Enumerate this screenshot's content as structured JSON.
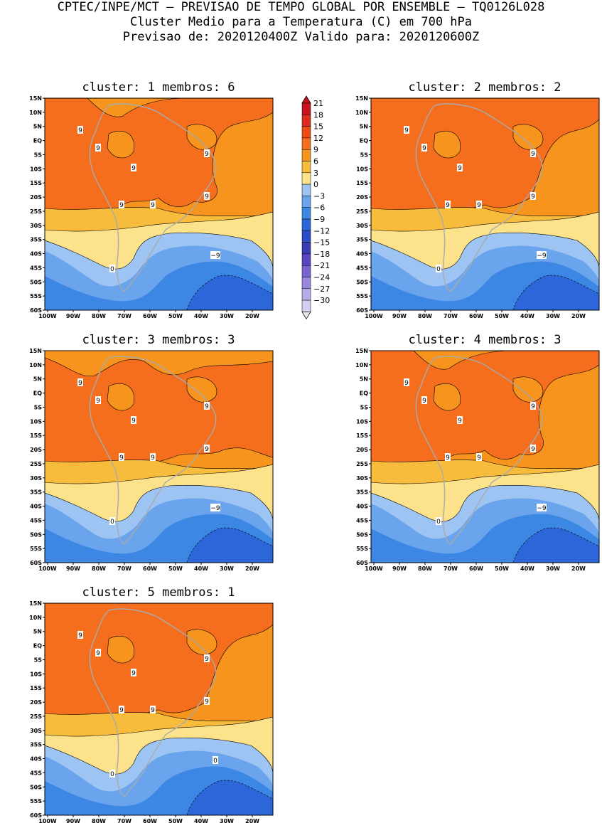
{
  "header": {
    "line1": "CPTEC/INPE/MCT – PREVISAO DE TEMPO GLOBAL POR ENSEMBLE – TQ0126L028",
    "line2": "Cluster Medio para a Temperatura (C) em 700 hPa",
    "line3": "Previsao de: 2020120400Z   Valido para: 2020120600Z"
  },
  "axes": {
    "lat_labels": [
      "15N",
      "10N",
      "5N",
      "EQ",
      "5S",
      "10S",
      "15S",
      "20S",
      "25S",
      "30S",
      "35S",
      "40S",
      "45S",
      "50S",
      "55S",
      "60S"
    ],
    "lon_labels": [
      "100W",
      "90W",
      "80W",
      "70W",
      "60W",
      "50W",
      "40W",
      "30W",
      "20W"
    ]
  },
  "colorbar": {
    "levels": [
      "21",
      "18",
      "15",
      "12",
      "9",
      "6",
      "3",
      "0",
      "−3",
      "−6",
      "−9",
      "−12",
      "−15",
      "−18",
      "−21",
      "−24",
      "−27",
      "−30"
    ],
    "colors": [
      "#c8141e",
      "#dc2a1e",
      "#ee4a14",
      "#f46e1e",
      "#f6941e",
      "#f8bc3c",
      "#fce28a",
      "#9ec4f4",
      "#6aa4ec",
      "#3c86e4",
      "#2c66d8",
      "#2a4ec8",
      "#3c3cb4",
      "#5a46c2",
      "#7a62d2",
      "#9a86de",
      "#b8aae8",
      "#d6ccf2"
    ]
  },
  "palette": {
    "warm12": "#f46e1e",
    "warm9": "#f6941e",
    "warm6": "#f8bc3c",
    "warm3": "#fce28a",
    "cold0": "#9ec4f4",
    "coldm3": "#6aa4ec",
    "coldm6": "#3c86e4",
    "coldm9": "#2c66d8",
    "land": "#aaaaaa"
  },
  "panels": [
    {
      "title": "cluster: 1   membros: 6",
      "labels": [
        "9",
        "9",
        "9",
        "9",
        "9",
        "9",
        "9",
        "0",
        "−9"
      ]
    },
    {
      "title": "cluster: 2   membros: 2",
      "labels": [
        "9",
        "9",
        "9",
        "9",
        "9",
        "9",
        "9",
        "0",
        "−9"
      ]
    },
    {
      "title": "cluster: 3   membros: 3",
      "labels": [
        "9",
        "9",
        "9",
        "9",
        "9",
        "9",
        "9",
        "0",
        "−9"
      ]
    },
    {
      "title": "cluster: 4   membros: 3",
      "labels": [
        "9",
        "9",
        "9",
        "9",
        "9",
        "9",
        "9",
        "0",
        "−9"
      ]
    },
    {
      "title": "cluster: 5   membros: 1",
      "labels": [
        "9",
        "9",
        "9",
        "9",
        "9",
        "9",
        "9",
        "0",
        "0"
      ]
    }
  ]
}
